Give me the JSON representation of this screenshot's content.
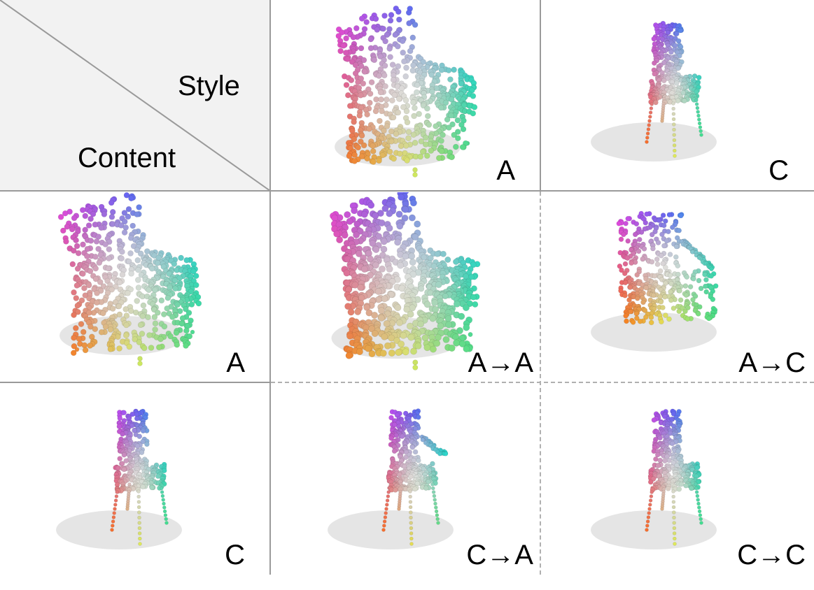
{
  "header": {
    "style_label": "Style",
    "content_label": "Content"
  },
  "column_headers": [
    "A",
    "C"
  ],
  "row_headers": [
    "A",
    "C"
  ],
  "results": [
    [
      "A→A",
      "A→C"
    ],
    [
      "C→A",
      "C→C"
    ]
  ],
  "colors": {
    "header_bg": "#f2f2f2",
    "grid_line": "#9a9a9a",
    "dash_line": "#b0b0b0",
    "gradient_magenta": "#d946ef",
    "gradient_blue": "#6366f1",
    "gradient_cyan": "#22d3ee",
    "gradient_green": "#4ade80",
    "gradient_yellow": "#e2e85a",
    "gradient_orange": "#f97316",
    "gradient_white": "#f5f5f0"
  },
  "shapes": {
    "armchair": "point-cloud-armchair",
    "chair": "point-cloud-chair"
  }
}
